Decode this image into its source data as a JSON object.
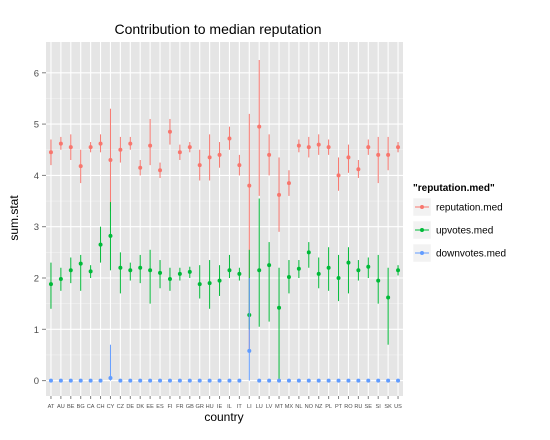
{
  "chart_data": {
    "type": "scatter",
    "title": "Contribution to median reputation",
    "xlabel": "country",
    "ylabel": "sum.stat",
    "ylim": [
      -0.3,
      6.6
    ],
    "y_ticks": [
      0,
      1,
      2,
      3,
      4,
      5,
      6
    ],
    "grid": true,
    "legend": {
      "title": "\"reputation.med\"",
      "placement": "right"
    },
    "categories": [
      "AT",
      "AU",
      "BE",
      "BG",
      "CA",
      "CH",
      "CY",
      "CZ",
      "DE",
      "DK",
      "EE",
      "ES",
      "FI",
      "FR",
      "GB",
      "GR",
      "HU",
      "IE",
      "IL",
      "IT",
      "LI",
      "LU",
      "LV",
      "MT",
      "MX",
      "NL",
      "NO",
      "NZ",
      "PL",
      "PT",
      "RO",
      "RU",
      "SE",
      "SI",
      "SK",
      "US"
    ],
    "x_tick_labels": [
      "AT",
      "AU",
      "BE",
      "BG",
      "CA",
      "CH",
      "CY",
      "CZ",
      "DE",
      "DK",
      "EE",
      "ES",
      "FI",
      "FR",
      "GB",
      "GR",
      "HU",
      "IE",
      "IL",
      "IT",
      "LI",
      "LU",
      "LV",
      "MT",
      "MX",
      "NL",
      "NO",
      "NZ",
      "PL",
      "PT",
      "RO",
      "RU",
      "SE",
      "SI",
      "SK",
      "US"
    ],
    "series": [
      {
        "name": "reputation.med",
        "color": "#F8766D",
        "values": [
          4.45,
          4.62,
          4.55,
          4.18,
          4.55,
          4.62,
          4.3,
          4.5,
          4.62,
          4.15,
          4.58,
          4.1,
          4.85,
          4.45,
          4.55,
          4.2,
          4.35,
          4.4,
          4.72,
          4.2,
          3.8,
          4.95,
          4.4,
          3.62,
          3.85,
          4.58,
          4.55,
          4.6,
          4.55,
          4.0,
          4.35,
          4.12,
          4.55,
          4.4,
          4.4,
          4.55
        ],
        "lower": [
          4.2,
          4.5,
          4.3,
          3.85,
          4.45,
          4.45,
          3.3,
          4.25,
          4.5,
          4.0,
          4.2,
          3.95,
          4.6,
          4.3,
          4.45,
          3.9,
          3.9,
          4.15,
          4.5,
          4.0,
          0.6,
          3.6,
          4.0,
          2.9,
          3.6,
          4.45,
          4.35,
          4.4,
          4.4,
          3.7,
          4.05,
          3.95,
          4.4,
          3.85,
          4.1,
          4.45
        ],
        "upper": [
          4.7,
          4.75,
          4.8,
          4.5,
          4.65,
          4.8,
          5.3,
          4.75,
          4.75,
          4.3,
          5.1,
          4.25,
          5.1,
          4.6,
          4.65,
          4.5,
          4.8,
          4.65,
          4.95,
          4.4,
          5.2,
          6.25,
          4.8,
          4.35,
          4.1,
          4.7,
          4.75,
          4.8,
          4.7,
          4.35,
          4.6,
          4.3,
          4.7,
          4.75,
          4.75,
          4.65
        ]
      },
      {
        "name": "upvotes.med",
        "color": "#00BA38",
        "values": [
          1.88,
          1.98,
          2.15,
          2.28,
          2.13,
          2.65,
          2.82,
          2.2,
          2.15,
          2.2,
          2.15,
          2.1,
          1.98,
          2.08,
          2.12,
          1.88,
          1.9,
          1.95,
          2.15,
          2.08,
          1.28,
          2.15,
          2.25,
          1.42,
          2.02,
          2.18,
          2.5,
          2.08,
          2.2,
          2.0,
          2.3,
          2.15,
          2.22,
          1.95,
          1.62,
          2.15
        ],
        "lower": [
          1.4,
          1.75,
          1.9,
          1.75,
          2.0,
          2.3,
          2.15,
          1.7,
          1.95,
          1.9,
          1.5,
          1.8,
          1.75,
          1.95,
          2.0,
          1.6,
          1.4,
          1.65,
          2.0,
          1.95,
          1.0,
          1.05,
          1.15,
          0.0,
          1.7,
          2.0,
          2.2,
          1.8,
          1.75,
          1.55,
          1.7,
          1.95,
          2.0,
          1.5,
          0.7,
          2.05
        ],
        "upper": [
          2.3,
          2.2,
          2.4,
          2.45,
          2.25,
          3.0,
          3.48,
          2.5,
          2.3,
          2.45,
          2.55,
          2.35,
          2.2,
          2.2,
          2.22,
          2.25,
          2.35,
          2.25,
          2.45,
          2.2,
          2.55,
          3.55,
          2.7,
          2.2,
          2.35,
          2.35,
          2.7,
          2.4,
          2.6,
          2.45,
          2.6,
          2.35,
          2.4,
          2.45,
          2.2,
          2.25
        ]
      },
      {
        "name": "downvotes.med",
        "color": "#619CFF",
        "values": [
          0,
          0,
          0,
          0,
          0,
          0,
          0.05,
          0,
          0,
          0,
          0,
          0,
          0,
          0,
          0,
          0,
          0,
          0,
          0,
          0,
          0.58,
          0,
          0,
          0,
          0,
          0,
          0,
          0,
          0,
          0,
          0,
          0,
          0,
          0,
          0,
          0
        ],
        "lower": [
          0,
          0,
          0,
          0,
          0,
          0,
          0,
          0,
          0,
          0,
          0,
          0,
          0,
          0,
          0,
          0,
          0,
          0,
          0,
          0,
          0,
          0,
          0,
          0,
          0,
          0,
          0,
          0,
          0,
          0,
          0,
          0,
          0,
          0,
          0,
          0
        ],
        "upper": [
          0,
          0,
          0,
          0,
          0,
          0,
          0.7,
          0,
          0,
          0,
          0,
          0,
          0,
          0,
          0,
          0,
          0,
          0,
          0,
          0,
          2.0,
          0,
          0,
          0,
          0,
          0,
          0,
          0,
          0,
          0,
          0,
          0,
          0,
          0,
          0,
          0
        ]
      }
    ]
  }
}
